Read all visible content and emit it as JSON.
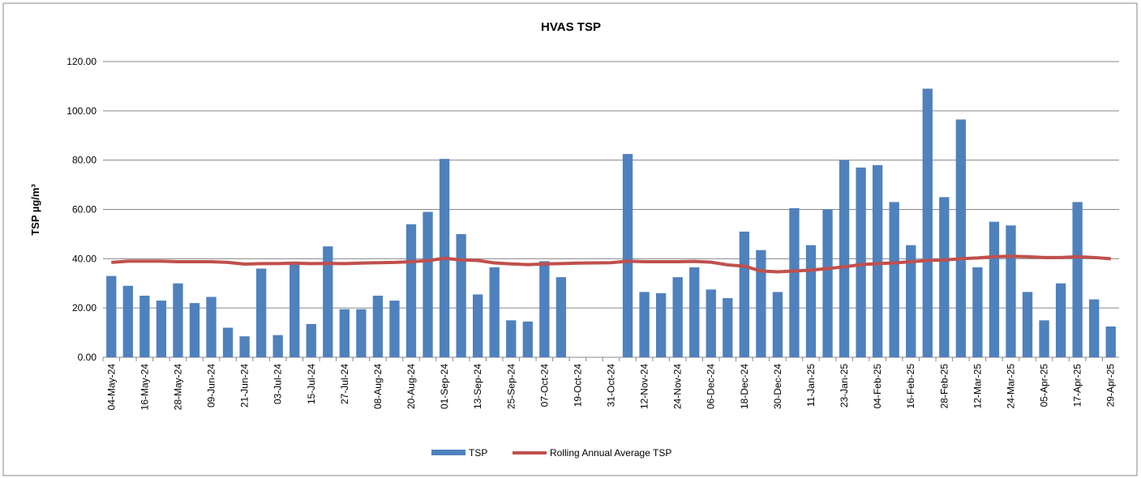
{
  "chart_data": {
    "type": "bar_line",
    "title": "HVAS TSP",
    "y_label": "TSP µg/m³",
    "categories": [
      "04-May-24",
      null,
      "16-May-24",
      null,
      "28-May-24",
      null,
      "09-Jun-24",
      null,
      "21-Jun-24",
      null,
      "03-Jul-24",
      null,
      "15-Jul-24",
      null,
      "27-Jul-24",
      null,
      "08-Aug-24",
      null,
      "20-Aug-24",
      null,
      "01-Sep-24",
      null,
      "13-Sep-24",
      null,
      "25-Sep-24",
      null,
      "07-Oct-24",
      null,
      "19-Oct-24",
      null,
      "31-Oct-24",
      null,
      "12-Nov-24",
      null,
      "24-Nov-24",
      null,
      "06-Dec-24",
      null,
      "18-Dec-24",
      null,
      "30-Dec-24",
      null,
      "11-Jan-25",
      null,
      "23-Jan-25",
      null,
      "04-Feb-25",
      null,
      "16-Feb-25",
      null,
      "28-Feb-25",
      null,
      "12-Mar-25",
      null,
      "24-Mar-25",
      null,
      "05-Apr-25",
      null,
      "17-Apr-25",
      null,
      "29-Apr-25"
    ],
    "series": [
      {
        "name": "TSP",
        "type": "bar",
        "color": "#4f81bd",
        "values": [
          33,
          29,
          25,
          23,
          30,
          22,
          24.5,
          12,
          8.5,
          36,
          9,
          38,
          13.5,
          45,
          19.5,
          19.5,
          25,
          23,
          54,
          59,
          80.5,
          50,
          25.5,
          36.5,
          15,
          14.5,
          39,
          32.5,
          null,
          null,
          null,
          82.5,
          26.5,
          26,
          32.5,
          36.5,
          27.5,
          24,
          51,
          43.5,
          26.5,
          60.5,
          45.5,
          60,
          80,
          77,
          78,
          63,
          45.5,
          109,
          65,
          96.5,
          36.5,
          55,
          53.5,
          26.5,
          15,
          30,
          63,
          23.5,
          12.5
        ]
      },
      {
        "name": "Rolling Annual Average TSP",
        "type": "line",
        "color": "#c0504d",
        "values": [
          38.5,
          39,
          39,
          39,
          38.8,
          38.8,
          38.8,
          38.5,
          37.8,
          38,
          38,
          38.2,
          38,
          38.1,
          38,
          38.2,
          38.4,
          38.5,
          38.8,
          39.2,
          40.2,
          39.5,
          39.3,
          38.3,
          37.9,
          37.6,
          37.9,
          38,
          38.2,
          38.3,
          38.4,
          39,
          38.8,
          38.8,
          38.8,
          38.9,
          38.6,
          37.5,
          37,
          35,
          34.7,
          35,
          35.4,
          36,
          36.7,
          37.6,
          38,
          38.3,
          38.8,
          39.3,
          39.5,
          40,
          40.3,
          40.8,
          41,
          40.8,
          40.5,
          40.5,
          40.8,
          40.5,
          40
        ]
      }
    ],
    "ylim": [
      0,
      120
    ],
    "yticks": [
      {
        "value": 0,
        "label": "0.00"
      },
      {
        "value": 20,
        "label": "20.00"
      },
      {
        "value": 40,
        "label": "40.00"
      },
      {
        "value": 60,
        "label": "60.00"
      },
      {
        "value": 80,
        "label": "80.00"
      },
      {
        "value": 100,
        "label": "100.00"
      },
      {
        "value": 120,
        "label": "120.00"
      }
    ],
    "grid": true,
    "legend": "bottom"
  }
}
